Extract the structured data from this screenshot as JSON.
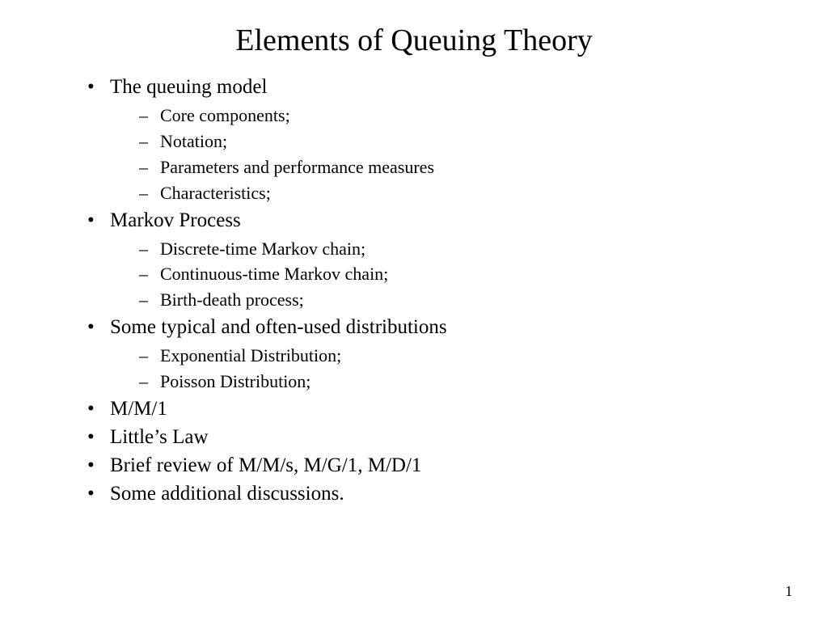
{
  "slide": {
    "title": "Elements of Queuing Theory",
    "page_number": "1",
    "background_color": "#ffffff",
    "text_color": "#000000",
    "title_fontsize": 38,
    "level1_fontsize": 25,
    "level2_fontsize": 22,
    "bullets": [
      {
        "text": "The queuing model",
        "children": [
          "Core components;",
          "Notation;",
          "Parameters and performance measures",
          "Characteristics;"
        ]
      },
      {
        "text": "Markov Process",
        "children": [
          "Discrete-time Markov chain;",
          "Continuous-time Markov chain;",
          "Birth-death process;"
        ]
      },
      {
        "text": "Some typical and often-used distributions",
        "children": [
          "Exponential Distribution;",
          "Poisson Distribution;"
        ]
      },
      {
        "text": "M/M/1",
        "children": []
      },
      {
        "text": "Little’s Law",
        "children": []
      },
      {
        "text": "Brief review of M/M/s, M/G/1, M/D/1",
        "children": []
      },
      {
        "text": "Some additional discussions.",
        "children": []
      }
    ]
  }
}
